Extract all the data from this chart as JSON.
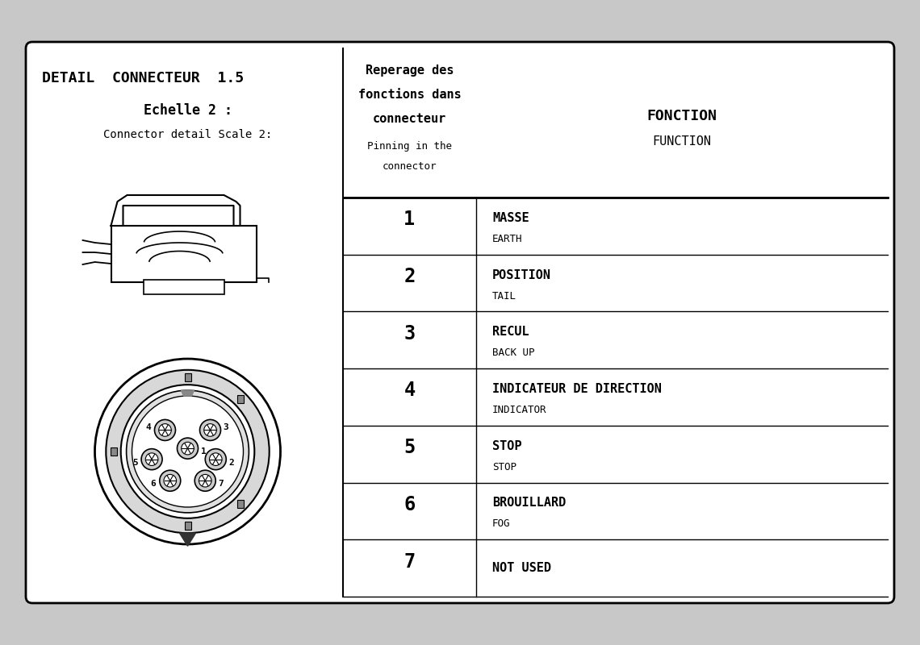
{
  "title_line1": "DETAIL  CONNECTEUR  1.5",
  "title_line2": "Echelle 2 :",
  "title_line3": "Connector detail Scale 2:",
  "header_col2_line1": "Reperage des",
  "header_col2_line2": "fonctions dans",
  "header_col2_line3": "connecteur",
  "header_col2_line4": "Pinning in the",
  "header_col2_line5": "connector",
  "header_col3_line1": "FONCTION",
  "header_col3_line2": "FUNCTION",
  "rows": [
    {
      "pin": "1",
      "fonction": "MASSE",
      "function": "EARTH"
    },
    {
      "pin": "2",
      "fonction": "POSITION",
      "function": "TAIL"
    },
    {
      "pin": "3",
      "fonction": "RECUL",
      "function": "BACK UP"
    },
    {
      "pin": "4",
      "fonction": "INDICATEUR DE DIRECTION",
      "function": "INDICATOR"
    },
    {
      "pin": "5",
      "fonction": "STOP",
      "function": "STOP"
    },
    {
      "pin": "6",
      "fonction": "BROUILLARD",
      "function": "FOG"
    },
    {
      "pin": "7",
      "fonction": "NOT USED",
      "function": ""
    }
  ],
  "fig_bg": "#c8c8c8",
  "box_bg": "#ffffff",
  "text_color": "#000000",
  "lw_outer": 2.0,
  "lw_inner": 1.2,
  "lw_thin": 0.8
}
